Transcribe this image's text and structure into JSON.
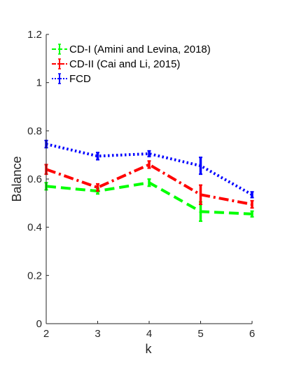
{
  "chart_data": {
    "type": "line",
    "title": "",
    "xlabel": "k",
    "ylabel": "Balance",
    "x": [
      2,
      3,
      4,
      5,
      6
    ],
    "xlim": [
      2,
      6
    ],
    "ylim": [
      0,
      1.2
    ],
    "xticks": [
      "2",
      "3",
      "4",
      "5",
      "6"
    ],
    "yticks": [
      "0",
      "0.2",
      "0.4",
      "0.6",
      "0.8",
      "1",
      "1.2"
    ],
    "grid": false,
    "legend_position": "top-left",
    "series": [
      {
        "name": "CD-I (Amini and Levina, 2018)",
        "color": "#00ff00",
        "line_style": "dashed",
        "values": [
          0.57,
          0.55,
          0.585,
          0.465,
          0.455
        ],
        "errors": [
          0.015,
          0.012,
          0.015,
          0.04,
          0.012
        ]
      },
      {
        "name": "CD-II (Cai and Li, 2015)",
        "color": "#ff0000",
        "line_style": "dash-dot",
        "values": [
          0.64,
          0.565,
          0.66,
          0.535,
          0.495
        ],
        "errors": [
          0.02,
          0.015,
          0.015,
          0.04,
          0.015
        ]
      },
      {
        "name": "FCD",
        "color": "#0000ff",
        "line_style": "dotted",
        "values": [
          0.745,
          0.695,
          0.705,
          0.655,
          0.535
        ],
        "errors": [
          0.015,
          0.015,
          0.012,
          0.035,
          0.012
        ]
      }
    ]
  }
}
